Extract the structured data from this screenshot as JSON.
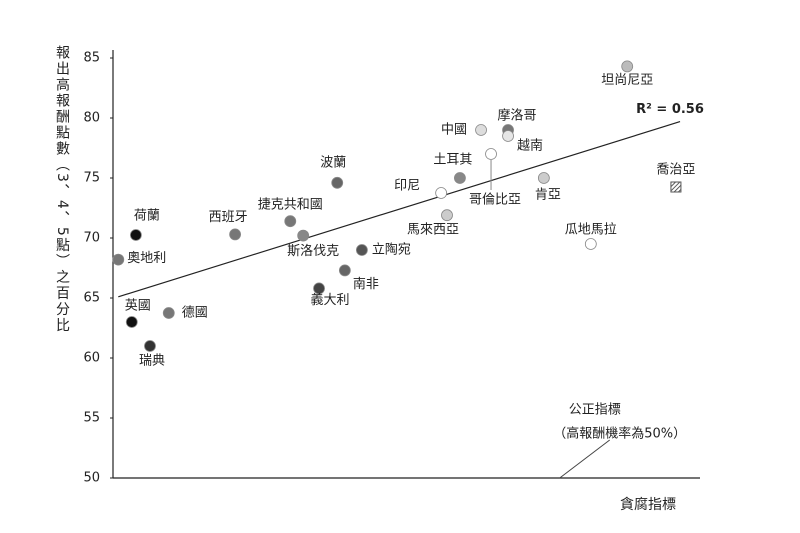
{
  "chart_data": {
    "type": "scatter",
    "y_label": "報出高報酬點數（3、4、5點）之百分比",
    "x_label": "貪腐指標",
    "xlim": [
      0,
      100
    ],
    "ylim": [
      50,
      85
    ],
    "yticks": [
      50,
      55,
      60,
      65,
      70,
      75,
      80,
      85
    ],
    "points": [
      {
        "label": "坦尚尼亞",
        "x": 87.6,
        "y": 84.3,
        "color": "#bbbbbb"
      },
      {
        "label": "摩洛哥",
        "x": 67.3,
        "y": 79.0,
        "color": "#777777"
      },
      {
        "label": "中國",
        "x": 62.7,
        "y": 79.0,
        "color": "#dddddd"
      },
      {
        "label": "越南",
        "x": 67.3,
        "y": 78.5,
        "color": "#e6e6e6"
      },
      {
        "label": "土耳其",
        "x": 59.1,
        "y": 75.0,
        "color": "#888888"
      },
      {
        "label": "哥倫比亞",
        "x": 64.4,
        "y": 77.0,
        "color": "#ffffff"
      },
      {
        "label": "肯亞",
        "x": 73.4,
        "y": 75.0,
        "color": "#cccccc"
      },
      {
        "label": "喬治亞",
        "x": 95.9,
        "y": 74.25,
        "color": "#555555",
        "marker": "square"
      },
      {
        "label": "印尼",
        "x": 55.9,
        "y": 73.75,
        "color": "#ffffff"
      },
      {
        "label": "馬來西亞",
        "x": 56.9,
        "y": 71.9,
        "color": "#cccccc"
      },
      {
        "label": "瓜地馬拉",
        "x": 81.4,
        "y": 69.5,
        "color": "#ffffff"
      },
      {
        "label": "波蘭",
        "x": 38.2,
        "y": 74.6,
        "color": "#666666"
      },
      {
        "label": "捷克共和國",
        "x": 30.2,
        "y": 71.4,
        "color": "#777777"
      },
      {
        "label": "西班牙",
        "x": 20.8,
        "y": 70.3,
        "color": "#777777"
      },
      {
        "label": "斯洛伐克",
        "x": 32.4,
        "y": 70.2,
        "color": "#888888"
      },
      {
        "label": "立陶宛",
        "x": 42.4,
        "y": 69.0,
        "color": "#555555"
      },
      {
        "label": "南非",
        "x": 39.5,
        "y": 67.3,
        "color": "#666666"
      },
      {
        "label": "義大利",
        "x": 35.1,
        "y": 65.8,
        "color": "#444444"
      },
      {
        "label": "荷蘭",
        "x": 3.9,
        "y": 70.25,
        "color": "#111111"
      },
      {
        "label": "奧地利",
        "x": 0.9,
        "y": 68.2,
        "color": "#777777"
      },
      {
        "label": "德國",
        "x": 9.5,
        "y": 63.75,
        "color": "#777777"
      },
      {
        "label": "英國",
        "x": 3.2,
        "y": 63.0,
        "color": "#111111"
      },
      {
        "label": "瑞典",
        "x": 6.3,
        "y": 61.0,
        "color": "#333333"
      }
    ],
    "trendline": {
      "label": "R² = 0.56",
      "x": [
        0.9,
        96.6
      ],
      "y": [
        65.1,
        79.7
      ]
    },
    "annotation": {
      "lines": [
        "公正指標",
        "（高報酬機率為50%）"
      ],
      "x": 76.1,
      "y": 50
    }
  }
}
